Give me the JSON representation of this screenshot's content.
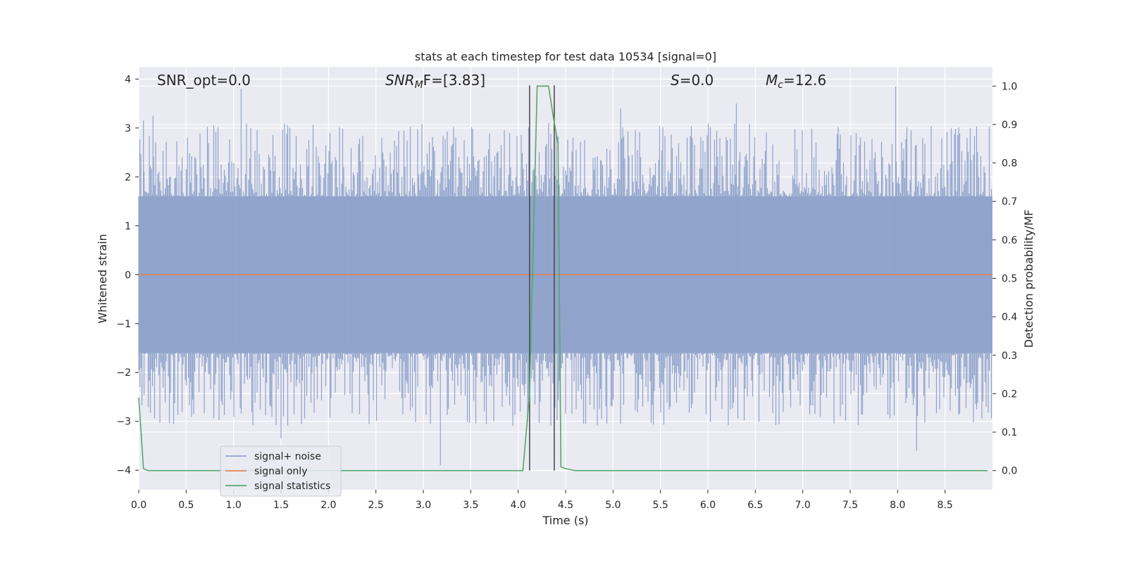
{
  "chart_data": {
    "type": "line",
    "title": "stats at each timestep for test data 10534 [signal=0]",
    "xlabel": "Time (s)",
    "ylabel_left": "Whitened strain",
    "ylabel_right": "Detection probability/MF",
    "xlim": [
      0.0,
      9.0
    ],
    "ylim_left": [
      -4.4,
      4.25
    ],
    "ylim_right": [
      -0.05,
      1.05
    ],
    "x_ticks": [
      "0.0",
      "0.5",
      "1.0",
      "1.5",
      "2.0",
      "2.5",
      "3.0",
      "3.5",
      "4.0",
      "4.5",
      "5.0",
      "5.5",
      "6.0",
      "6.5",
      "7.0",
      "7.5",
      "8.0",
      "8.5"
    ],
    "y_ticks_left": [
      "−4",
      "−3",
      "−2",
      "−1",
      "0",
      "1",
      "2",
      "3",
      "4"
    ],
    "y_ticks_right": [
      "0.0",
      "0.1",
      "0.2",
      "0.3",
      "0.4",
      "0.5",
      "0.6",
      "0.7",
      "0.8",
      "0.9",
      "1.0"
    ],
    "grid": true,
    "legend_placement": "lower-left",
    "colors": {
      "background": "#eaeaf2",
      "grid": "#ffffff",
      "noise": "#8fa3cb",
      "signal": "#dd8452",
      "stats": "#55a868",
      "marker": "#4d4d4d"
    },
    "annotations": {
      "snr_opt": "SNR_opt=0.0",
      "snr_mf_base": "SNR",
      "snr_mf_sub": "M",
      "snr_mf_tail": "F=[3.83]",
      "s_base": "S",
      "s_tail": "=0.0",
      "mc_base": "M",
      "mc_sub": "c",
      "mc_tail": "=12.6"
    },
    "series": [
      {
        "name": "signal+ noise",
        "kind": "noise",
        "envelope_typical": 1.6,
        "noted_peaks": [
          {
            "x": 0.05,
            "y": 3.15
          },
          {
            "x": 0.15,
            "y": 3.25
          },
          {
            "x": 1.08,
            "y": 3.8
          },
          {
            "x": 1.5,
            "y": -3.35
          },
          {
            "x": 3.18,
            "y": -3.9
          },
          {
            "x": 4.32,
            "y": 3.1
          },
          {
            "x": 5.08,
            "y": 3.4
          },
          {
            "x": 6.3,
            "y": 3.5
          },
          {
            "x": 7.98,
            "y": 3.85
          },
          {
            "x": 8.2,
            "y": -3.6
          }
        ]
      },
      {
        "name": "signal only",
        "kind": "flat",
        "value": 0.0
      },
      {
        "name": "signal statistics",
        "kind": "probability",
        "x": [
          0.0,
          0.05,
          0.1,
          0.3,
          1.0,
          2.0,
          3.0,
          4.05,
          4.12,
          4.2,
          4.32,
          4.37,
          4.42,
          4.45,
          4.5,
          4.6,
          5.0,
          6.0,
          7.0,
          8.0,
          8.95
        ],
        "y": [
          0.19,
          0.005,
          0.0,
          0.0,
          0.0,
          0.0,
          0.0,
          0.0,
          0.2,
          1.0,
          1.0,
          0.92,
          0.85,
          0.01,
          0.005,
          0.0,
          0.0,
          0.0,
          0.0,
          0.0,
          0.0
        ]
      }
    ],
    "vertical_markers": [
      4.12,
      4.38
    ]
  }
}
